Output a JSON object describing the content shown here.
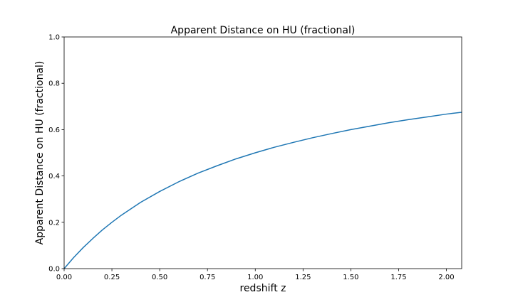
{
  "chart_data": {
    "type": "line",
    "title": "Apparent Distance on HU (fractional)",
    "xlabel": "redshift z",
    "ylabel": "Apparent Distance on HU (fractional)",
    "xlim": [
      0.0,
      2.08
    ],
    "ylim": [
      0.0,
      1.0
    ],
    "x_ticks": [
      0.0,
      0.25,
      0.5,
      0.75,
      1.0,
      1.25,
      1.5,
      1.75,
      2.0
    ],
    "x_tick_labels": [
      "0.00",
      "0.25",
      "0.50",
      "0.75",
      "1.00",
      "1.25",
      "1.50",
      "1.75",
      "2.00"
    ],
    "y_ticks": [
      0.0,
      0.2,
      0.4,
      0.6,
      0.8,
      1.0
    ],
    "y_tick_labels": [
      "0.0",
      "0.2",
      "0.4",
      "0.6",
      "0.8",
      "1.0"
    ],
    "grid": false,
    "series": [
      {
        "color": "#1f77b4",
        "x": [
          0.0,
          0.05,
          0.1,
          0.15,
          0.2,
          0.25,
          0.3,
          0.4,
          0.5,
          0.6,
          0.7,
          0.8,
          0.9,
          1.0,
          1.1,
          1.2,
          1.3,
          1.4,
          1.5,
          1.6,
          1.7,
          1.8,
          1.9,
          2.0,
          2.08
        ],
        "y": [
          0.0,
          0.048,
          0.091,
          0.13,
          0.167,
          0.2,
          0.231,
          0.286,
          0.333,
          0.375,
          0.412,
          0.444,
          0.474,
          0.5,
          0.524,
          0.545,
          0.565,
          0.583,
          0.6,
          0.615,
          0.63,
          0.643,
          0.655,
          0.667,
          0.675
        ]
      }
    ]
  }
}
